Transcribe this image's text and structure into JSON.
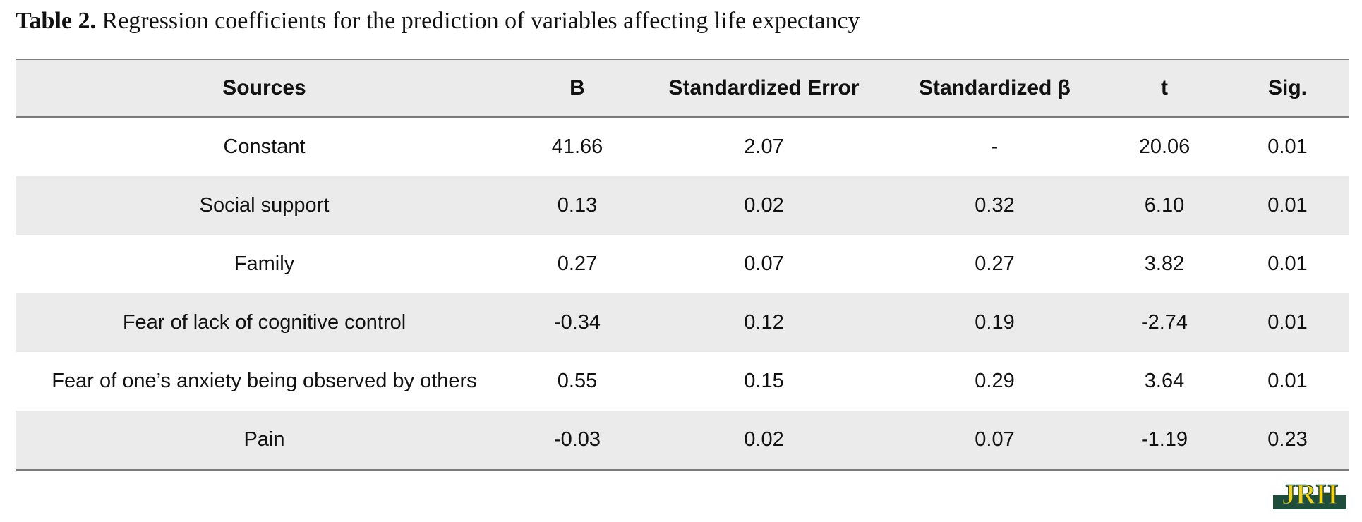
{
  "caption": {
    "label": "Table 2.",
    "text": "Regression coefficients for the prediction of variables affecting life expectancy"
  },
  "table": {
    "headers": [
      "Sources",
      "B",
      "Standardized Error",
      "Standardized β",
      "t",
      "Sig."
    ],
    "rows": [
      [
        "Constant",
        "41.66",
        "2.07",
        "-",
        "20.06",
        "0.01"
      ],
      [
        "Social support",
        "0.13",
        "0.02",
        "0.32",
        "6.10",
        "0.01"
      ],
      [
        "Family",
        "0.27",
        "0.07",
        "0.27",
        "3.82",
        "0.01"
      ],
      [
        "Fear of lack of cognitive control",
        "-0.34",
        "0.12",
        "0.19",
        "-2.74",
        "0.01"
      ],
      [
        "Fear of one’s anxiety being observed by others",
        "0.55",
        "0.15",
        "0.29",
        "3.64",
        "0.01"
      ],
      [
        "Pain",
        "-0.03",
        "0.02",
        "0.07",
        "-1.19",
        "0.23"
      ]
    ]
  },
  "logo": {
    "text": "JRH",
    "icon": "jrh-journal-logo",
    "colors": {
      "yellow": "#f2d21a",
      "green": "#1f4d3c"
    }
  }
}
